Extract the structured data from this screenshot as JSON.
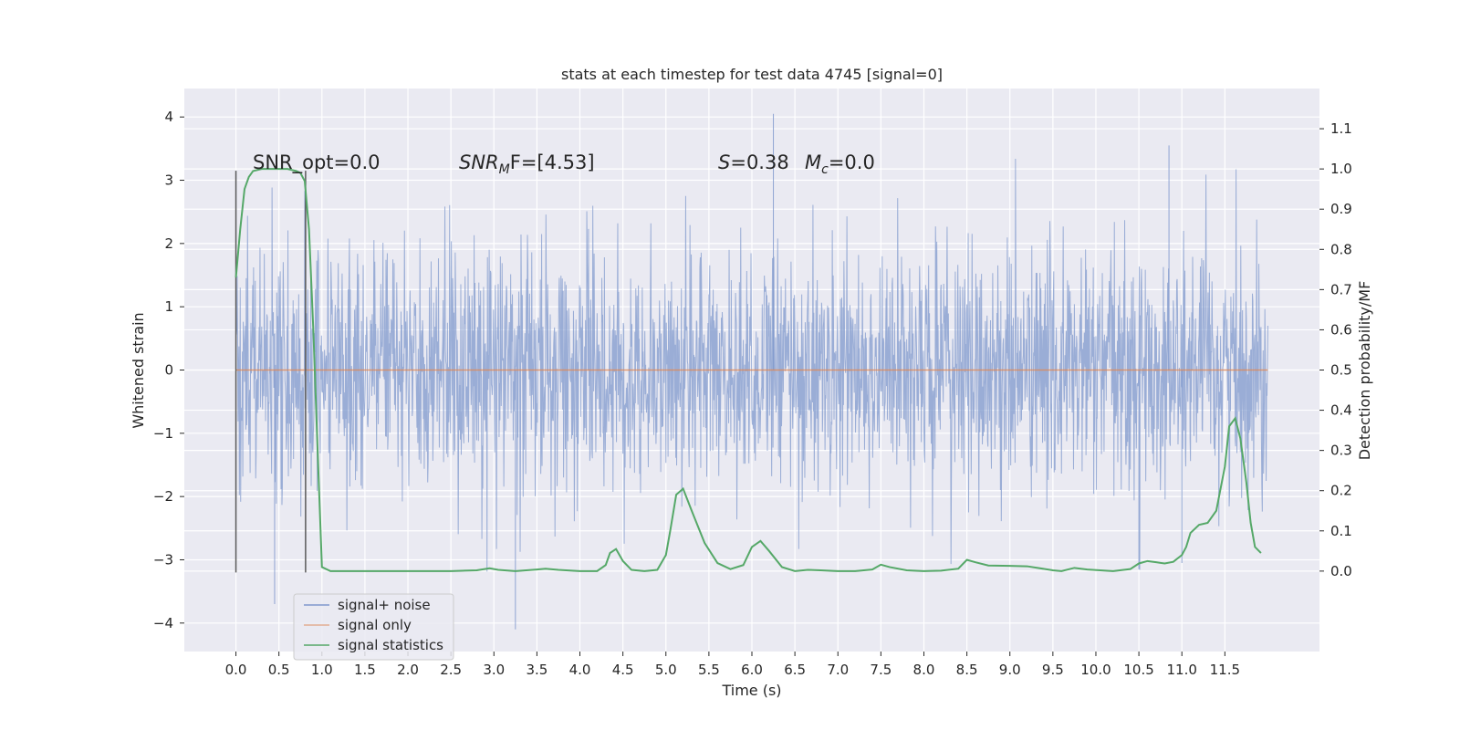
{
  "chart_data": {
    "type": "line",
    "title": "stats at each timestep for test data 4745 [signal=0]",
    "xlabel": "Time (s)",
    "ylabel": "Whitened strain",
    "ylabel_right": "Detection probability/MF",
    "xlim": [
      -0.6,
      12.6
    ],
    "ylim": [
      -4.45,
      4.45
    ],
    "ylim_right": [
      -0.2,
      1.2
    ],
    "x_ticks": [
      0.0,
      0.5,
      1.0,
      1.5,
      2.0,
      2.5,
      3.0,
      3.5,
      4.0,
      4.5,
      5.0,
      5.5,
      6.0,
      6.5,
      7.0,
      7.5,
      8.0,
      8.5,
      9.0,
      9.5,
      10.0,
      10.5,
      11.0,
      11.5
    ],
    "x_tick_labels": [
      "0.0",
      "0.5",
      "1.0",
      "1.5",
      "2.0",
      "2.5",
      "3.0",
      "3.5",
      "4.0",
      "4.5",
      "5.0",
      "5.5",
      "6.0",
      "6.5",
      "7.0",
      "7.5",
      "8.0",
      "8.5",
      "9.0",
      "9.5",
      "10.0",
      "10.5",
      "11.0",
      "11.5"
    ],
    "y_ticks": [
      -4,
      -3,
      -2,
      -1,
      0,
      1,
      2,
      3,
      4
    ],
    "y_tick_labels": [
      "−4",
      "−3",
      "−2",
      "−1",
      "0",
      "1",
      "2",
      "3",
      "4"
    ],
    "y_right_ticks": [
      0.0,
      0.1,
      0.2,
      0.3,
      0.4,
      0.5,
      0.6,
      0.7,
      0.8,
      0.9,
      1.0,
      1.1
    ],
    "y_right_tick_labels": [
      "0.0",
      "0.1",
      "0.2",
      "0.3",
      "0.4",
      "0.5",
      "0.6",
      "0.7",
      "0.8",
      "0.9",
      "1.0",
      "1.1"
    ],
    "grid": true,
    "legend_position": "lower-left",
    "annotations": {
      "snr_opt": "SNR_opt=0.0",
      "snr_mf_base": "SNR",
      "snr_mf_sub": "M",
      "snr_mf_rest": "F=[4.53]",
      "s_var": "S",
      "s_val": "=0.38",
      "mc_var": "M",
      "mc_sub": "c",
      "mc_val": "=0.0"
    },
    "series": [
      {
        "name": "signal+ noise",
        "color": "#7f98cc",
        "axis": "left",
        "x_range": [
          0.0,
          12.0
        ],
        "band_core": [
          -1.3,
          1.3
        ],
        "positive_peak_max": 4.05,
        "negative_peak_min": -4.1,
        "notable_peaks": [
          [
            0.0,
            3.15
          ],
          [
            0.45,
            -3.7
          ],
          [
            3.25,
            -4.1
          ],
          [
            6.25,
            4.05
          ],
          [
            10.85,
            3.55
          ],
          [
            10.5,
            -3.15
          ],
          [
            11.0,
            -3.05
          ]
        ]
      },
      {
        "name": "signal only",
        "color": "#dd8452",
        "axis": "left",
        "x": [
          0.0,
          12.0
        ],
        "y": [
          0.0,
          0.0
        ]
      },
      {
        "name": "signal statistics",
        "color": "#55a868",
        "axis": "right",
        "x": [
          0.0,
          0.05,
          0.1,
          0.15,
          0.2,
          0.3,
          0.4,
          0.5,
          0.6,
          0.7,
          0.75,
          0.8,
          0.85,
          0.9,
          0.95,
          1.0,
          1.1,
          1.25,
          1.5,
          2.0,
          2.5,
          2.8,
          2.95,
          3.05,
          3.25,
          3.5,
          3.6,
          3.75,
          4.0,
          4.2,
          4.3,
          4.35,
          4.42,
          4.5,
          4.6,
          4.75,
          4.9,
          5.0,
          5.05,
          5.12,
          5.2,
          5.3,
          5.45,
          5.6,
          5.75,
          5.9,
          6.0,
          6.1,
          6.2,
          6.35,
          6.5,
          6.65,
          6.8,
          7.0,
          7.2,
          7.4,
          7.5,
          7.6,
          7.8,
          8.0,
          8.2,
          8.4,
          8.5,
          8.6,
          8.75,
          9.0,
          9.2,
          9.5,
          9.6,
          9.75,
          9.9,
          10.2,
          10.4,
          10.5,
          10.6,
          10.7,
          10.8,
          10.9,
          11.0,
          11.05,
          11.1,
          11.2,
          11.3,
          11.4,
          11.5,
          11.55,
          11.62,
          11.68,
          11.75,
          11.8,
          11.85,
          11.92
        ],
        "y": [
          0.73,
          0.85,
          0.95,
          0.98,
          0.995,
          1.0,
          1.0,
          1.0,
          1.0,
          0.995,
          0.99,
          0.97,
          0.85,
          0.6,
          0.3,
          0.01,
          0.0,
          0.0,
          0.0,
          0.0,
          0.0,
          0.002,
          0.007,
          0.003,
          0.0,
          0.004,
          0.006,
          0.003,
          0.0,
          0.0,
          0.015,
          0.045,
          0.055,
          0.025,
          0.003,
          0.0,
          0.003,
          0.04,
          0.1,
          0.19,
          0.205,
          0.15,
          0.07,
          0.02,
          0.005,
          0.015,
          0.06,
          0.075,
          0.05,
          0.01,
          0.0,
          0.003,
          0.002,
          0.0,
          0.0,
          0.004,
          0.016,
          0.01,
          0.002,
          0.0,
          0.001,
          0.006,
          0.028,
          0.022,
          0.014,
          0.013,
          0.012,
          0.002,
          0.0,
          0.008,
          0.004,
          0.0,
          0.005,
          0.019,
          0.025,
          0.022,
          0.019,
          0.023,
          0.04,
          0.06,
          0.095,
          0.115,
          0.12,
          0.15,
          0.26,
          0.36,
          0.38,
          0.33,
          0.22,
          0.12,
          0.06,
          0.045
        ]
      }
    ],
    "vertical_markers": [
      {
        "x": 0.0,
        "y_range": [
          -3.2,
          3.15
        ]
      },
      {
        "x": 0.81,
        "y_range": [
          -3.2,
          3.15
        ]
      }
    ]
  },
  "colors": {
    "plot_background": "#eaeaf2",
    "grid": "#ffffff",
    "text": "#262626",
    "marker_line": "#595959"
  }
}
